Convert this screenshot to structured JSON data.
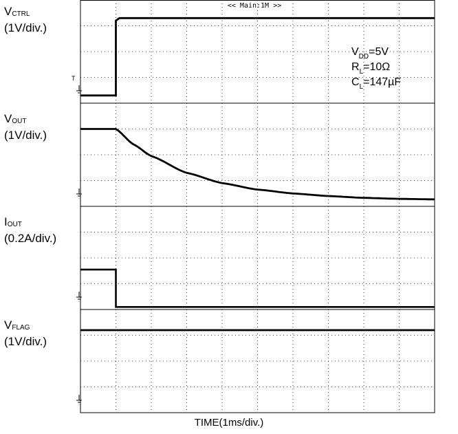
{
  "channels": [
    {
      "name_main": "V",
      "name_sub": "CTRL",
      "scale": "(1V/div.)"
    },
    {
      "name_main": "V",
      "name_sub": "OUT",
      "scale": "(1V/div.)"
    },
    {
      "name_main": "I",
      "name_sub": "OUT",
      "scale": "(0.2A/div.)"
    },
    {
      "name_main": "V",
      "name_sub": "FLAG",
      "scale": "(1V/div.)"
    }
  ],
  "header": "<< Main:1M >>",
  "trigger_marker": "T",
  "conditions": [
    {
      "main": "V",
      "sub": "DD",
      "rest": "=5V"
    },
    {
      "main": "R",
      "sub": "L",
      "rest": "=10Ω"
    },
    {
      "main": "C",
      "sub": "L",
      "rest": "=147µF"
    }
  ],
  "time_label": "TIME(1ms/div.)",
  "chart_data": {
    "type": "line",
    "title": "",
    "xlabel": "TIME(1ms/div.)",
    "x_unit": "ms",
    "xlim": [
      0,
      10
    ],
    "grid": true,
    "panels": [
      {
        "channel": "VCTRL",
        "y_unit": "div",
        "ylim": [
          0,
          4
        ],
        "series": [
          {
            "x": [
              0,
              1.0,
              1.0,
              1.1,
              10
            ],
            "y": [
              0.3,
              0.3,
              3.2,
              3.3,
              3.3
            ]
          }
        ]
      },
      {
        "channel": "VOUT",
        "y_unit": "div",
        "ylim": [
          0,
          4
        ],
        "series": [
          {
            "x": [
              0,
              1.0,
              1.5,
              2,
              3,
              4,
              5,
              6,
              7,
              8,
              9,
              10
            ],
            "y": [
              3.0,
              3.0,
              2.4,
              1.95,
              1.3,
              0.9,
              0.65,
              0.5,
              0.4,
              0.33,
              0.29,
              0.27
            ]
          }
        ]
      },
      {
        "channel": "IOUT",
        "y_unit": "div",
        "ylim": [
          0,
          4
        ],
        "series": [
          {
            "x": [
              0,
              1.0,
              1.0,
              10
            ],
            "y": [
              1.55,
              1.55,
              0.1,
              0.1
            ]
          }
        ]
      },
      {
        "channel": "VFLAG",
        "y_unit": "div",
        "ylim": [
          0,
          4
        ],
        "series": [
          {
            "x": [
              0,
              10
            ],
            "y": [
              3.2,
              3.2
            ]
          }
        ]
      }
    ]
  }
}
